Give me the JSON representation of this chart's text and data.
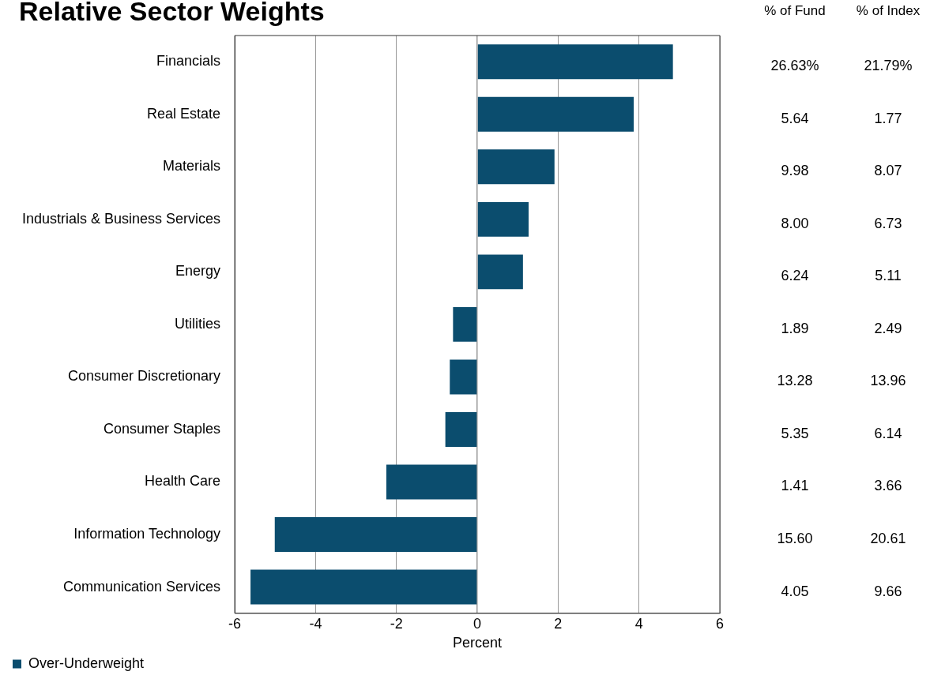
{
  "chart_data": {
    "type": "bar",
    "orientation": "horizontal",
    "title": "Relative Sector Weights",
    "xlabel": "Percent",
    "categories": [
      "Financials",
      "Real Estate",
      "Materials",
      "Industrials & Business Services",
      "Energy",
      "Utilities",
      "Consumer Discretionary",
      "Consumer Staples",
      "Health Care",
      "Information Technology",
      "Communication Services"
    ],
    "series": [
      {
        "name": "Over-Underweight",
        "color": "#0b4d6e",
        "values": [
          4.84,
          3.87,
          1.91,
          1.27,
          1.13,
          -0.6,
          -0.68,
          -0.79,
          -2.25,
          -5.01,
          -5.61
        ]
      }
    ],
    "xlim": [
      -6,
      6
    ],
    "xticks": [
      -6,
      -4,
      -2,
      0,
      2,
      4,
      6
    ],
    "grid": "x",
    "legend": "bottom left",
    "annotations": [
      "% of Fund",
      "% of Index",
      "26.63%",
      "21.79%",
      "5.64",
      "1.77",
      "9.98",
      "8.07",
      "8.00",
      "6.73",
      "6.24",
      "5.11",
      "1.89",
      "2.49",
      "13.28",
      "13.96",
      "5.35",
      "6.14",
      "1.41",
      "3.66",
      "15.60",
      "20.61",
      "4.05",
      "9.66"
    ]
  }
}
